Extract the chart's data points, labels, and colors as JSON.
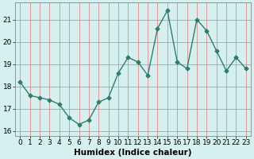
{
  "x": [
    0,
    1,
    2,
    3,
    4,
    5,
    6,
    7,
    8,
    9,
    10,
    11,
    12,
    13,
    14,
    15,
    16,
    17,
    18,
    19,
    20,
    21,
    22,
    23
  ],
  "y": [
    18.2,
    17.6,
    17.5,
    17.4,
    17.2,
    16.6,
    16.3,
    16.5,
    17.3,
    17.5,
    18.6,
    19.3,
    19.1,
    18.5,
    20.6,
    21.4,
    19.1,
    18.8,
    21.0,
    20.5,
    19.6,
    18.7,
    19.3,
    18.8
  ],
  "xlabel": "Humidex (Indice chaleur)",
  "ylabel": "",
  "ylim": [
    15.8,
    21.75
  ],
  "yticks": [
    16,
    17,
    18,
    19,
    20,
    21
  ],
  "xticks": [
    0,
    1,
    2,
    3,
    4,
    5,
    6,
    7,
    8,
    9,
    10,
    11,
    12,
    13,
    14,
    15,
    16,
    17,
    18,
    19,
    20,
    21,
    22,
    23
  ],
  "line_color": "#2e7d6e",
  "marker": "D",
  "marker_size": 2.5,
  "bg_color": "#d6f0ef",
  "grid_color": "#e08080",
  "tick_fontsize": 6.5,
  "xlabel_fontsize": 7.5,
  "line_width": 1.0
}
